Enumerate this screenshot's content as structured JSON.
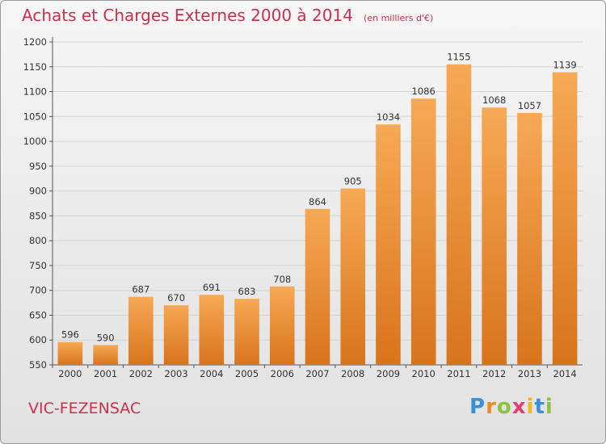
{
  "header": {
    "title": "Achats et Charges Externes 2000 à 2014",
    "subtitle": "(en milliers d'€)"
  },
  "footer": {
    "city": "VIC-FEZENSAC",
    "logo": {
      "letters": [
        "P",
        "r",
        "o",
        "x",
        "i",
        "t",
        "i"
      ],
      "colors": [
        "#3a8fd8",
        "#f18a1f",
        "#8cc43e",
        "#e63c73",
        "#f3b81b",
        "#3a8fd8",
        "#8cc43e"
      ]
    }
  },
  "chart_data": {
    "type": "bar",
    "categories": [
      "2000",
      "2001",
      "2002",
      "2003",
      "2004",
      "2005",
      "2006",
      "2007",
      "2008",
      "2009",
      "2010",
      "2011",
      "2012",
      "2013",
      "2014"
    ],
    "values": [
      596,
      590,
      687,
      670,
      691,
      683,
      708,
      864,
      905,
      1034,
      1086,
      1155,
      1068,
      1057,
      1139
    ],
    "ylim": [
      550,
      1200
    ],
    "yticks": [
      550,
      600,
      650,
      700,
      750,
      800,
      850,
      900,
      950,
      1000,
      1050,
      1100,
      1150,
      1200
    ],
    "grid": true,
    "bar_color_top": "#f7a955",
    "bar_color_bottom": "#d8741c",
    "grid_color": "#d2d2d2"
  }
}
